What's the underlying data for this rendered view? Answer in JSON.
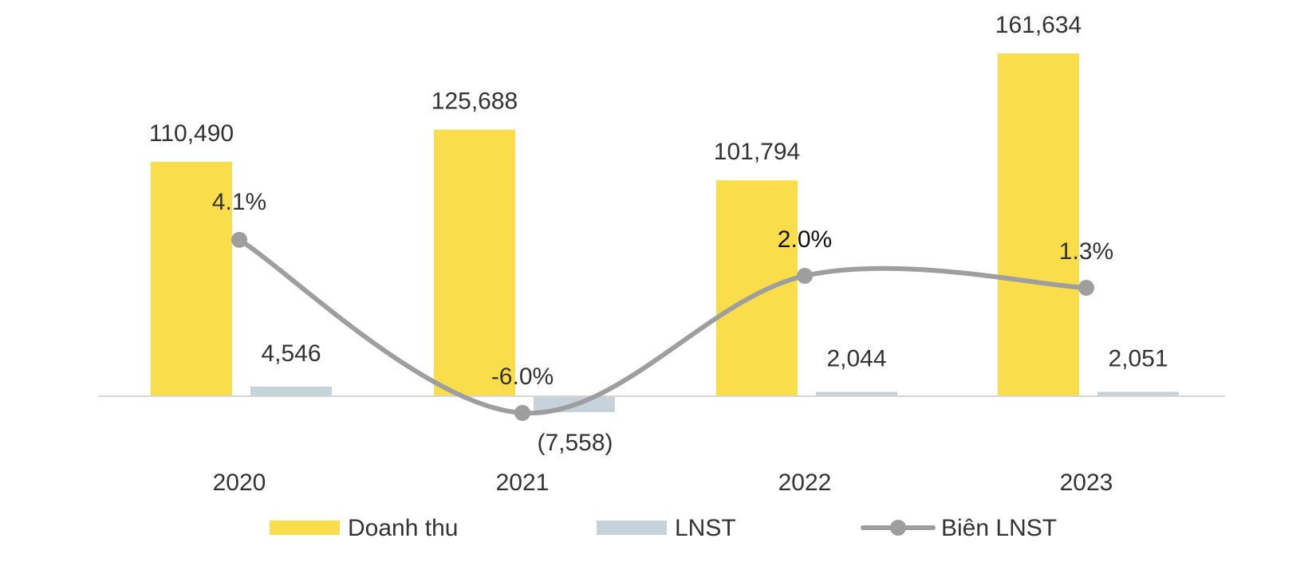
{
  "chart_data": {
    "type": "bar",
    "categories": [
      "2020",
      "2021",
      "2022",
      "2023"
    ],
    "series": [
      {
        "name": "Doanh thu",
        "type": "bar",
        "values": [
          110490,
          125688,
          101794,
          161634
        ],
        "labels": [
          "110,490",
          "125,688",
          "101,794",
          "161,634"
        ],
        "color": "#F9DD4A"
      },
      {
        "name": "LNST",
        "type": "bar",
        "values": [
          4546,
          -7558,
          2044,
          2051
        ],
        "labels": [
          "4,546",
          "(7,558)",
          "2,044",
          "2,051"
        ],
        "color": "#C7D3DA"
      },
      {
        "name": "Biên LNST",
        "type": "line",
        "values": [
          4.1,
          -6.0,
          2.0,
          1.3
        ],
        "labels": [
          "4.1%",
          "-6.0%",
          "2.0%",
          "1.3%"
        ],
        "color": "#9E9E9E"
      }
    ],
    "ylim": [
      -10000,
      170000
    ],
    "y2lim": [
      -10,
      15
    ],
    "legend": "bottom",
    "grid": false,
    "colors": {
      "axis": "#D6D6D6",
      "text": "#333333"
    }
  }
}
